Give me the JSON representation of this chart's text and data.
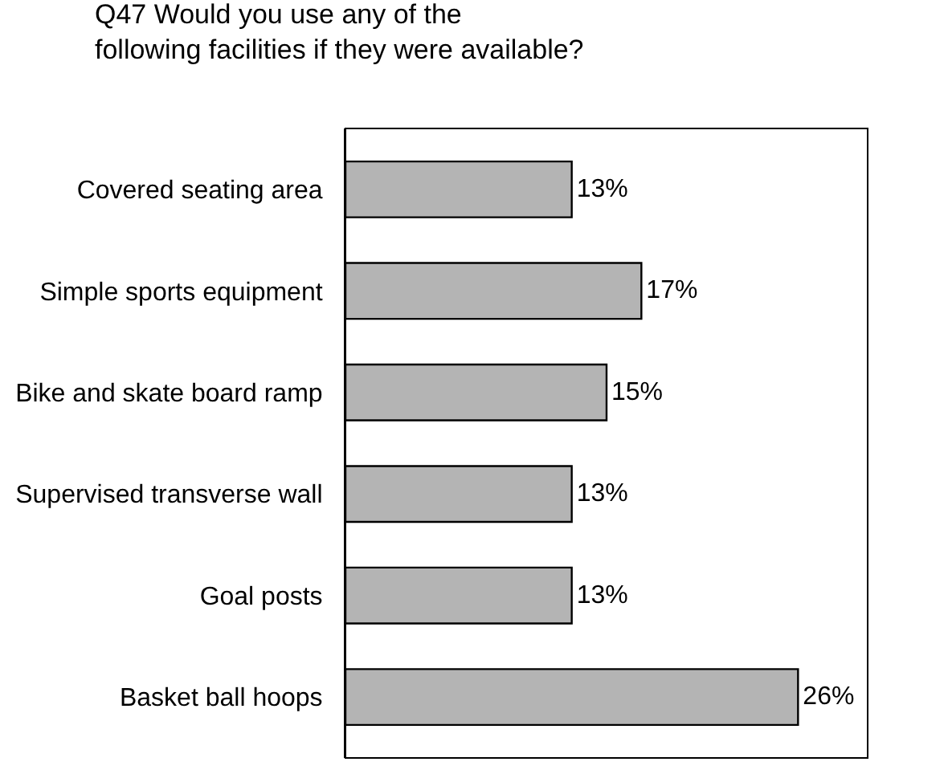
{
  "chart_data": {
    "type": "bar",
    "orientation": "horizontal",
    "title": "Q47 Would you use any of the following facilities if they were available?",
    "categories": [
      "Covered seating area",
      "Simple sports equipment",
      "Bike and skate board ramp",
      "Supervised transverse wall",
      "Goal posts",
      "Basket ball hoops"
    ],
    "values": [
      13,
      17,
      15,
      13,
      13,
      26
    ],
    "value_labels": [
      "13%",
      "17%",
      "15%",
      "13%",
      "13%",
      "26%"
    ],
    "color": "#b4b4b4",
    "xlim": [
      0,
      30
    ],
    "tick_labels": "y",
    "grid": false,
    "legend": false
  }
}
